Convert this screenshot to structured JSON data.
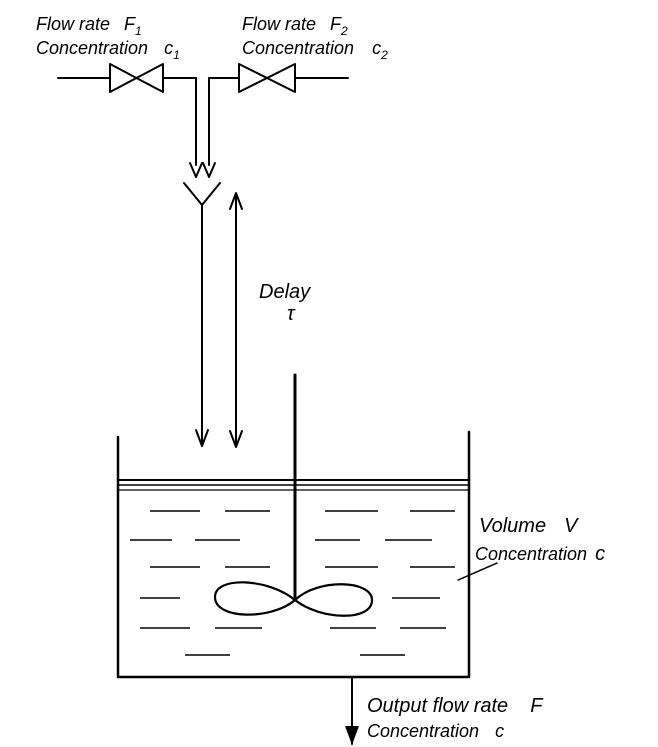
{
  "inlet_1": {
    "flow_label": "Flow rate",
    "flow_symbol": "F",
    "flow_subscript": "1",
    "conc_label": "Concentration",
    "conc_symbol": "c",
    "conc_subscript": "1"
  },
  "inlet_2": {
    "flow_label": "Flow rate",
    "flow_symbol": "F",
    "flow_subscript": "2",
    "conc_label": "Concentration",
    "conc_symbol": "c",
    "conc_subscript": "2"
  },
  "delay": {
    "label": "Delay",
    "symbol": "τ"
  },
  "tank": {
    "volume_label": "Volume",
    "volume_symbol": "V",
    "conc_label": "Concentration",
    "conc_symbol": "c"
  },
  "outlet": {
    "flow_label": "Output flow rate",
    "flow_symbol": "F",
    "conc_label": "Concentration",
    "conc_symbol": "c"
  }
}
